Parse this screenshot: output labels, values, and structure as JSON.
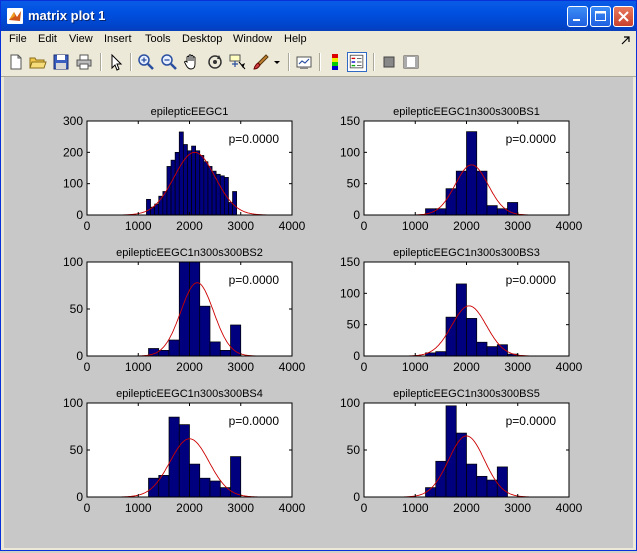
{
  "window": {
    "title": "matrix plot 1"
  },
  "menu": [
    "File",
    "Edit",
    "View",
    "Insert",
    "Tools",
    "Desktop",
    "Window",
    "Help"
  ],
  "colors": {
    "bar_fill": "#00007f",
    "curve": "#cc0000",
    "figure_bg": "#c8c8c8",
    "axes_bg": "#ffffff"
  },
  "toolbar": [
    "new-figure-icon",
    "open-file-icon",
    "save-icon",
    "print-icon",
    "edit-plot-arrow-icon",
    "zoom-in-icon",
    "zoom-out-icon",
    "pan-hand-icon",
    "rotate-3d-icon",
    "data-cursor-icon",
    "brush-icon",
    "brush-dropdown-icon",
    "link-plot-icon",
    "colorbar-icon",
    "legend-icon",
    "hide-plot-tools-icon",
    "show-plot-tools-icon"
  ],
  "chart_data": [
    {
      "type": "bar",
      "title": "epilepticEEGC1",
      "annotation": "p=0.0000",
      "xlim": [
        0,
        4000
      ],
      "ylim": [
        0,
        300
      ],
      "xticks": [
        "0",
        "1000",
        "2000",
        "3000",
        "4000"
      ],
      "yticks": [
        "0",
        "100",
        "200",
        "300"
      ],
      "bar_width": 80,
      "bars": [
        {
          "x": 1200,
          "y": 50
        },
        {
          "x": 1280,
          "y": 25
        },
        {
          "x": 1360,
          "y": 35
        },
        {
          "x": 1440,
          "y": 60
        },
        {
          "x": 1520,
          "y": 75
        },
        {
          "x": 1600,
          "y": 155
        },
        {
          "x": 1680,
          "y": 175
        },
        {
          "x": 1760,
          "y": 200
        },
        {
          "x": 1840,
          "y": 265
        },
        {
          "x": 1920,
          "y": 225
        },
        {
          "x": 2000,
          "y": 205
        },
        {
          "x": 2080,
          "y": 220
        },
        {
          "x": 2160,
          "y": 205
        },
        {
          "x": 2240,
          "y": 190
        },
        {
          "x": 2320,
          "y": 170
        },
        {
          "x": 2400,
          "y": 155
        },
        {
          "x": 2480,
          "y": 140
        },
        {
          "x": 2560,
          "y": 130
        },
        {
          "x": 2640,
          "y": 125
        },
        {
          "x": 2720,
          "y": 120
        },
        {
          "x": 2800,
          "y": 40
        },
        {
          "x": 2880,
          "y": 75
        }
      ],
      "curve": {
        "mean": 2100,
        "sd": 400,
        "peak": 200
      }
    },
    {
      "type": "bar",
      "title": "epilepticEEGC1n300s300BS1",
      "annotation": "p=0.0000",
      "xlim": [
        0,
        4000
      ],
      "ylim": [
        0,
        150
      ],
      "xticks": [
        "0",
        "1000",
        "2000",
        "3000",
        "4000"
      ],
      "yticks": [
        "0",
        "50",
        "100",
        "150"
      ],
      "bar_width": 200,
      "bars": [
        {
          "x": 1300,
          "y": 10
        },
        {
          "x": 1500,
          "y": 10
        },
        {
          "x": 1700,
          "y": 42
        },
        {
          "x": 1900,
          "y": 70
        },
        {
          "x": 2100,
          "y": 133
        },
        {
          "x": 2300,
          "y": 70
        },
        {
          "x": 2500,
          "y": 15
        },
        {
          "x": 2700,
          "y": 10
        },
        {
          "x": 2900,
          "y": 20
        }
      ],
      "curve": {
        "mean": 2100,
        "sd": 320,
        "peak": 80
      }
    },
    {
      "type": "bar",
      "title": "epilepticEEGC1n300s300BS2",
      "annotation": "p=0.0000",
      "xlim": [
        0,
        4000
      ],
      "ylim": [
        0,
        100
      ],
      "xticks": [
        "0",
        "1000",
        "2000",
        "3000",
        "4000"
      ],
      "yticks": [
        "0",
        "50",
        "100"
      ],
      "bar_width": 200,
      "bars": [
        {
          "x": 1300,
          "y": 8
        },
        {
          "x": 1500,
          "y": 6
        },
        {
          "x": 1700,
          "y": 17
        },
        {
          "x": 1900,
          "y": 100
        },
        {
          "x": 2100,
          "y": 100
        },
        {
          "x": 2300,
          "y": 53
        },
        {
          "x": 2500,
          "y": 15
        },
        {
          "x": 2700,
          "y": 6
        },
        {
          "x": 2900,
          "y": 33
        }
      ],
      "curve": {
        "mean": 2150,
        "sd": 320,
        "peak": 78
      }
    },
    {
      "type": "bar",
      "title": "epilepticEEGC1n300s300BS3",
      "annotation": "p=0.0000",
      "xlim": [
        0,
        4000
      ],
      "ylim": [
        0,
        150
      ],
      "xticks": [
        "0",
        "1000",
        "2000",
        "3000",
        "4000"
      ],
      "yticks": [
        "0",
        "50",
        "100",
        "150"
      ],
      "bar_width": 200,
      "bars": [
        {
          "x": 1300,
          "y": 5
        },
        {
          "x": 1500,
          "y": 7
        },
        {
          "x": 1700,
          "y": 62
        },
        {
          "x": 1900,
          "y": 115
        },
        {
          "x": 2100,
          "y": 60
        },
        {
          "x": 2300,
          "y": 22
        },
        {
          "x": 2500,
          "y": 15
        },
        {
          "x": 2700,
          "y": 18
        },
        {
          "x": 2900,
          "y": 3
        }
      ],
      "curve": {
        "mean": 2050,
        "sd": 340,
        "peak": 80
      }
    },
    {
      "type": "bar",
      "title": "epilepticEEGC1n300s300BS4",
      "annotation": "p=0.0000",
      "xlim": [
        0,
        4000
      ],
      "ylim": [
        0,
        100
      ],
      "xticks": [
        "0",
        "1000",
        "2000",
        "3000",
        "4000"
      ],
      "yticks": [
        "0",
        "50",
        "100"
      ],
      "bar_width": 200,
      "bars": [
        {
          "x": 1300,
          "y": 20
        },
        {
          "x": 1500,
          "y": 23
        },
        {
          "x": 1700,
          "y": 85
        },
        {
          "x": 1900,
          "y": 77
        },
        {
          "x": 2100,
          "y": 35
        },
        {
          "x": 2300,
          "y": 20
        },
        {
          "x": 2500,
          "y": 17
        },
        {
          "x": 2700,
          "y": 10
        },
        {
          "x": 2900,
          "y": 43
        }
      ],
      "curve": {
        "mean": 2000,
        "sd": 380,
        "peak": 62
      }
    },
    {
      "type": "bar",
      "title": "epilepticEEGC1n300s300BS5",
      "annotation": "p=0.0000",
      "xlim": [
        0,
        4000
      ],
      "ylim": [
        0,
        100
      ],
      "xticks": [
        "0",
        "1000",
        "2000",
        "3000",
        "4000"
      ],
      "yticks": [
        "0",
        "50",
        "100"
      ],
      "bar_width": 200,
      "bars": [
        {
          "x": 1300,
          "y": 10
        },
        {
          "x": 1500,
          "y": 38
        },
        {
          "x": 1700,
          "y": 97
        },
        {
          "x": 1900,
          "y": 68
        },
        {
          "x": 2100,
          "y": 35
        },
        {
          "x": 2300,
          "y": 22
        },
        {
          "x": 2500,
          "y": 18
        },
        {
          "x": 2700,
          "y": 32
        }
      ],
      "curve": {
        "mean": 2000,
        "sd": 350,
        "peak": 65
      }
    }
  ]
}
